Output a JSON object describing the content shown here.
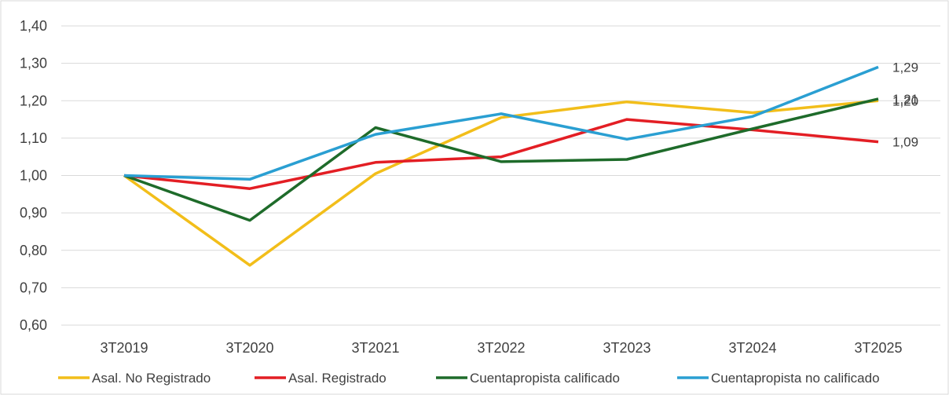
{
  "chart_data": {
    "type": "line",
    "categories": [
      "3T2019",
      "3T2020",
      "3T2021",
      "3T2022",
      "3T2023",
      "3T2024",
      "3T2025"
    ],
    "ylim": [
      0.6,
      1.4
    ],
    "yticks": [
      "0,60",
      "0,70",
      "0,80",
      "0,90",
      "1,00",
      "1,10",
      "1,20",
      "1,30",
      "1,40"
    ],
    "grid": true,
    "legend": "bottom",
    "series": [
      {
        "name": "Asal. No Registrado",
        "color": "#F2BE1A",
        "values": [
          1.0,
          0.76,
          1.005,
          1.155,
          1.197,
          1.168,
          1.2
        ],
        "end_label": "1,20"
      },
      {
        "name": "Asal. Registrado",
        "color": "#E31E24",
        "values": [
          1.0,
          0.965,
          1.035,
          1.05,
          1.15,
          1.122,
          1.09
        ],
        "end_label": "1,09"
      },
      {
        "name": "Cuentapropista calificado",
        "color": "#1E6B2A",
        "values": [
          1.0,
          0.88,
          1.128,
          1.037,
          1.043,
          1.125,
          1.205
        ],
        "end_label": "1,21"
      },
      {
        "name": "Cuentapropista no calificado",
        "color": "#2A9FD2",
        "values": [
          1.0,
          0.99,
          1.11,
          1.165,
          1.097,
          1.158,
          1.29
        ],
        "end_label": "1,29"
      }
    ]
  }
}
